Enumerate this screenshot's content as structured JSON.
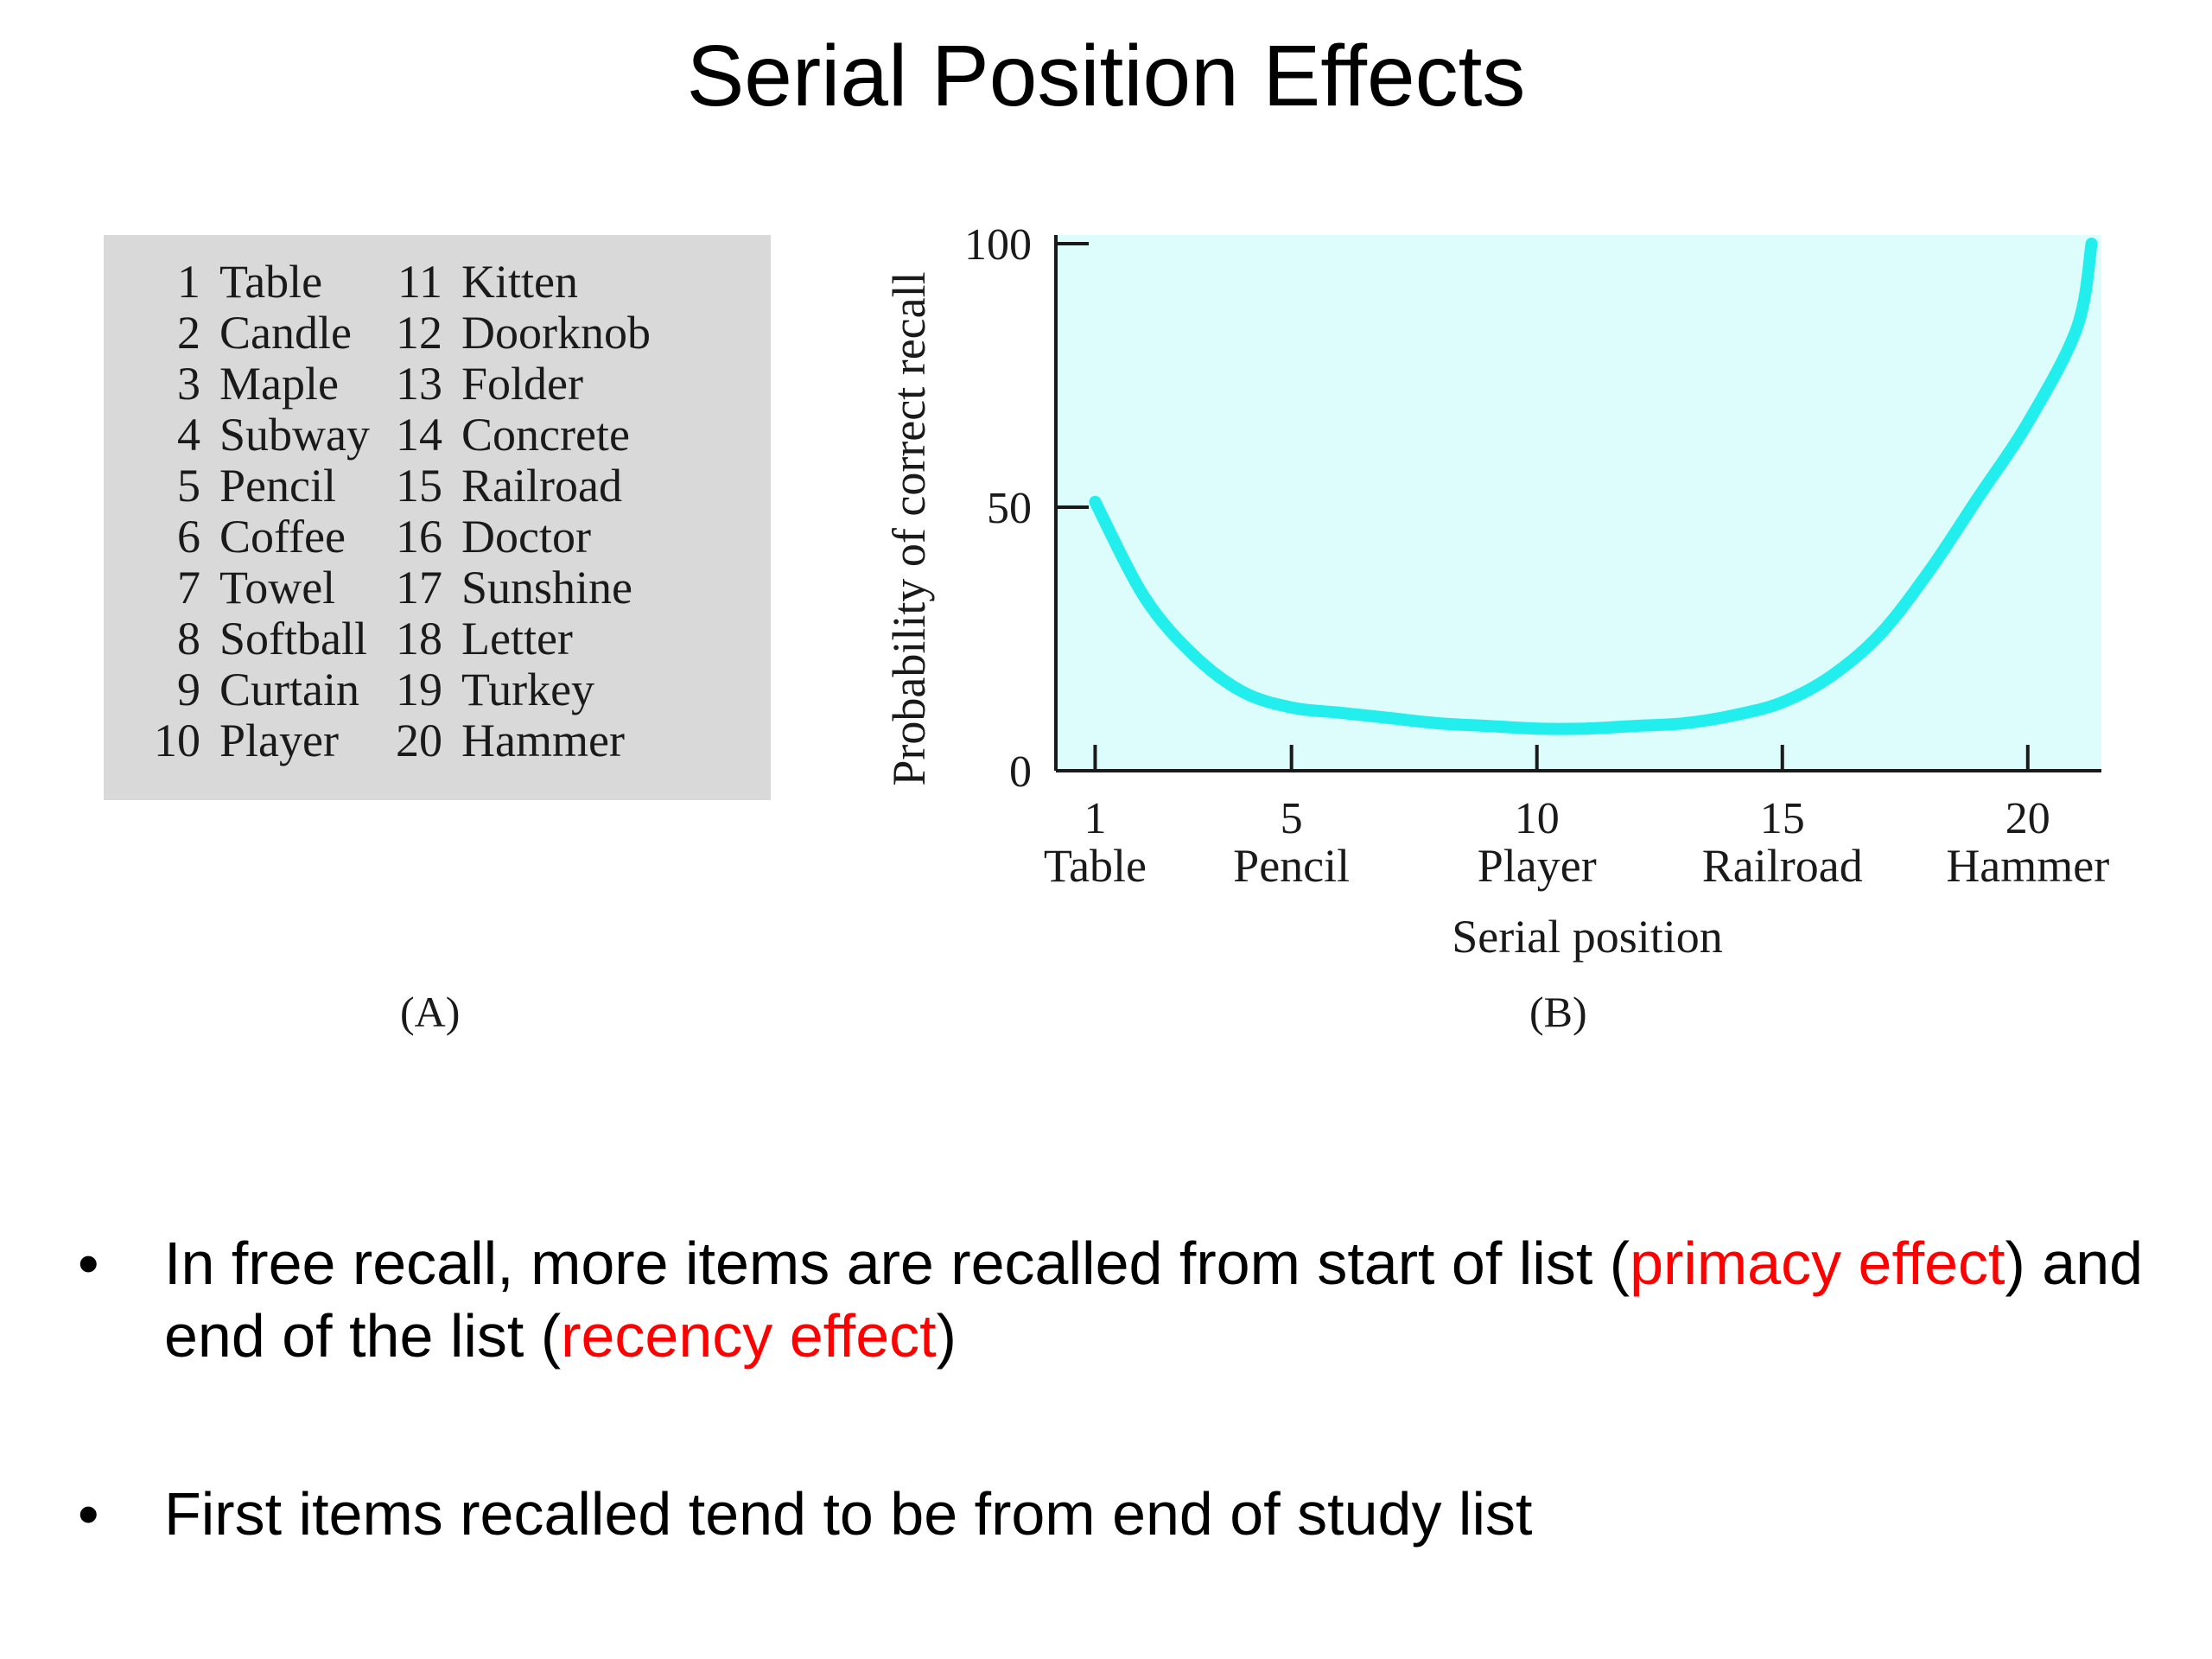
{
  "title": "Serial Position Effects",
  "word_list": {
    "label": "(A)",
    "items": [
      {
        "n": "1",
        "word": "Table"
      },
      {
        "n": "2",
        "word": "Candle"
      },
      {
        "n": "3",
        "word": "Maple"
      },
      {
        "n": "4",
        "word": "Subway"
      },
      {
        "n": "5",
        "word": "Pencil"
      },
      {
        "n": "6",
        "word": "Coffee"
      },
      {
        "n": "7",
        "word": "Towel"
      },
      {
        "n": "8",
        "word": "Softball"
      },
      {
        "n": "9",
        "word": "Curtain"
      },
      {
        "n": "10",
        "word": "Player"
      },
      {
        "n": "11",
        "word": "Kitten"
      },
      {
        "n": "12",
        "word": "Doorknob"
      },
      {
        "n": "13",
        "word": "Folder"
      },
      {
        "n": "14",
        "word": "Concrete"
      },
      {
        "n": "15",
        "word": "Railroad"
      },
      {
        "n": "16",
        "word": "Doctor"
      },
      {
        "n": "17",
        "word": "Sunshine"
      },
      {
        "n": "18",
        "word": "Letter"
      },
      {
        "n": "19",
        "word": "Turkey"
      },
      {
        "n": "20",
        "word": "Hammer"
      }
    ]
  },
  "chart_data": {
    "type": "line",
    "label": "(B)",
    "xlabel": "Serial position",
    "ylabel": "Probability of correct recall",
    "xlim": [
      0.2,
      21.5
    ],
    "ylim": [
      0,
      100
    ],
    "x_ticks": [
      {
        "value": 1,
        "label": "1",
        "word": "Table"
      },
      {
        "value": 5,
        "label": "5",
        "word": "Pencil"
      },
      {
        "value": 10,
        "label": "10",
        "word": "Player"
      },
      {
        "value": 15,
        "label": "15",
        "word": "Railroad"
      },
      {
        "value": 20,
        "label": "20",
        "word": "Hammer"
      }
    ],
    "y_ticks": [
      {
        "value": 0,
        "label": "0"
      },
      {
        "value": 50,
        "label": "50"
      },
      {
        "value": 100,
        "label": "100"
      }
    ],
    "series": [
      {
        "color": "#22eeee",
        "x": [
          1,
          2,
          3,
          4,
          5,
          6,
          7,
          8,
          9,
          10,
          11,
          12,
          13,
          14,
          15,
          16,
          17,
          18,
          19,
          20,
          21,
          21.3
        ],
        "y": [
          51,
          33,
          22,
          15,
          12,
          11,
          10,
          9,
          8.5,
          8,
          8,
          8.5,
          9,
          10.5,
          13,
          18,
          26,
          38,
          52,
          66,
          84,
          100
        ]
      }
    ],
    "plot_bg": "#ddfcfc"
  },
  "bullets": [
    {
      "parts": [
        {
          "text": "In free recall, more items are recalled from start of list (",
          "highlight": false
        },
        {
          "text": "primacy effect",
          "highlight": true
        },
        {
          "text": ") and end of the list (",
          "highlight": false
        },
        {
          "text": "recency effect",
          "highlight": true
        },
        {
          "text": ")",
          "highlight": false
        }
      ]
    },
    {
      "parts": [
        {
          "text": "First items recalled tend to be from end of study list",
          "highlight": false
        }
      ]
    }
  ],
  "bullet_symbol": "•",
  "highlight_color": "#ff0000"
}
